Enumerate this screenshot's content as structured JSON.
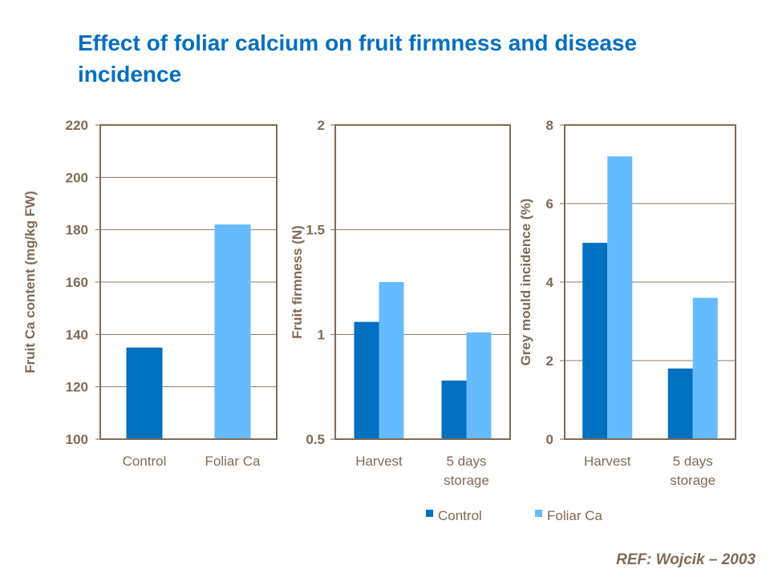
{
  "title": "Effect of foliar calcium on fruit firmness and disease incidence",
  "reference": "REF:  Wojcik – 2003",
  "colors": {
    "control": "#0070C0",
    "foliar": "#66BBFF",
    "text": "#7F6A55",
    "title": "#0070C0",
    "grid": "#7F6A55"
  },
  "legend": [
    {
      "name": "Control",
      "color": "#0070C0"
    },
    {
      "name": "Foliar Ca",
      "color": "#66BBFF"
    }
  ],
  "chart_data": [
    {
      "type": "bar",
      "ylabel": "Fruit Ca content (mg/kg FW)",
      "ylim": [
        100,
        220
      ],
      "yticks": [
        "100",
        "120",
        "140",
        "160",
        "180",
        "200",
        "220"
      ],
      "categories": [
        "Control",
        "Foliar Ca"
      ],
      "series": [
        {
          "values": [
            135,
            182
          ]
        }
      ],
      "grid": true
    },
    {
      "type": "bar",
      "ylabel": "Fruit firmness (N)",
      "ylim": [
        0.5,
        2
      ],
      "yticks": [
        "0.5",
        "1",
        "1.5",
        "2"
      ],
      "categories": [
        [
          "Harvest"
        ],
        [
          "5 days",
          "storage"
        ]
      ],
      "series": [
        {
          "name": "Control",
          "values": [
            1.06,
            0.78
          ]
        },
        {
          "name": "Foliar Ca",
          "values": [
            1.25,
            1.01
          ]
        }
      ],
      "grid": true
    },
    {
      "type": "bar",
      "ylabel": "Grey mould incidence (%)",
      "ylim": [
        0,
        8
      ],
      "yticks": [
        "0",
        "2",
        "4",
        "6",
        "8"
      ],
      "categories": [
        [
          "Harvest"
        ],
        [
          "5 days",
          "storage"
        ]
      ],
      "series": [
        {
          "name": "Control",
          "values": [
            5.0,
            1.8
          ]
        },
        {
          "name": "Foliar Ca",
          "values": [
            7.2,
            3.6
          ]
        }
      ],
      "grid": true
    }
  ]
}
